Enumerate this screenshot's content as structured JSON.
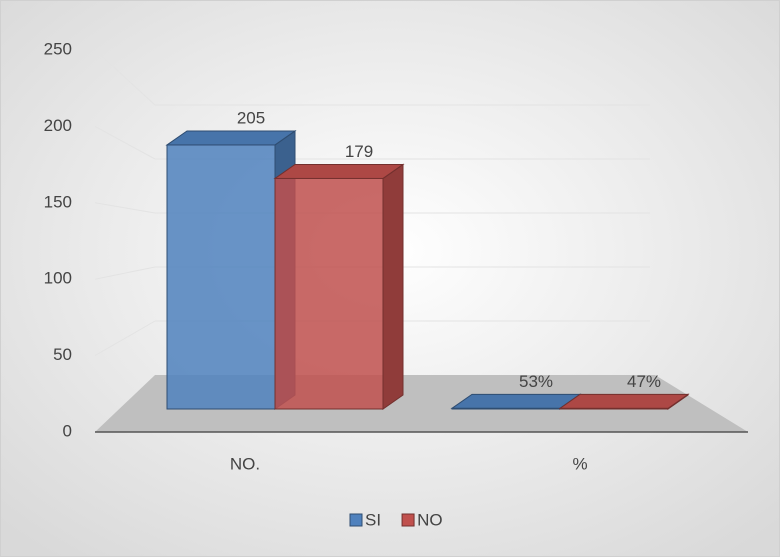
{
  "chart_data": {
    "type": "bar3d",
    "categories": [
      "NO.",
      "%"
    ],
    "series": [
      {
        "name": "SI",
        "color": "#4f81bd",
        "values": [
          205,
          0.53
        ],
        "value_labels": [
          "205",
          "53%"
        ]
      },
      {
        "name": "NO",
        "color": "#c0504d",
        "values": [
          179,
          0.47
        ],
        "value_labels": [
          "179",
          "47%"
        ]
      }
    ],
    "ylim": [
      0,
      250
    ],
    "yticks": [
      0,
      50,
      100,
      150,
      200,
      250
    ],
    "grid": true,
    "legend": "bottom"
  }
}
